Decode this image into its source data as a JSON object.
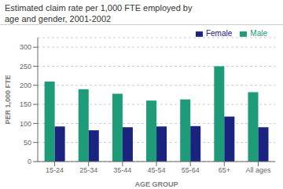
{
  "chart_data": {
    "type": "bar",
    "title": "Estimated claim rate per 1,000 FTE employed by",
    "subtitle": "age and gender, 2001-2002",
    "categories": [
      "15-24",
      "25-34",
      "35-44",
      "45-54",
      "55-64",
      "65+",
      "All ages"
    ],
    "series": [
      {
        "name": "Male",
        "color": "#1e9b78",
        "values": [
          210,
          190,
          178,
          160,
          163,
          250,
          182
        ]
      },
      {
        "name": "Female",
        "color": "#1a237e",
        "values": [
          92,
          82,
          90,
          92,
          93,
          118,
          90
        ]
      }
    ],
    "xlabel": "AGE GROUP",
    "ylabel": "PER 1,000 FTE",
    "ylim": [
      0,
      325
    ],
    "yticks": [
      0,
      50,
      100,
      150,
      200,
      250,
      300
    ],
    "grid": true,
    "legend": "upper right"
  }
}
